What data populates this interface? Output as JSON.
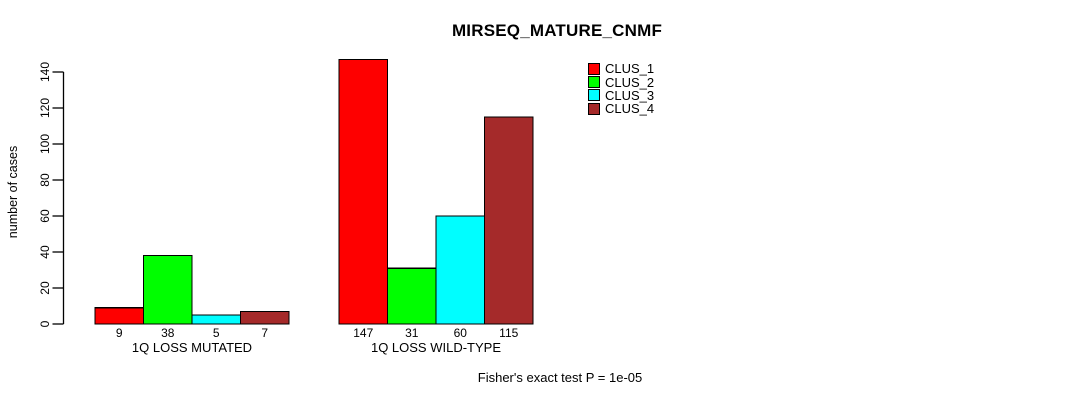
{
  "chart_data": {
    "type": "bar",
    "title": "MIRSEQ_MATURE_CNMF",
    "ylabel": "number of cases",
    "xlabel": "",
    "ylim": [
      0,
      140
    ],
    "yticks": [
      0,
      20,
      40,
      60,
      80,
      100,
      120,
      140
    ],
    "grid": false,
    "legend_position": "top-right",
    "categories": [
      "1Q LOSS MUTATED",
      "1Q LOSS WILD-TYPE"
    ],
    "series": [
      {
        "name": "CLUS_1",
        "color": "#fe0000",
        "values": [
          9,
          147
        ]
      },
      {
        "name": "CLUS_2",
        "color": "#00fe00",
        "values": [
          38,
          31
        ]
      },
      {
        "name": "CLUS_3",
        "color": "#00feff",
        "values": [
          5,
          60
        ]
      },
      {
        "name": "CLUS_4",
        "color": "#a52a2a",
        "values": [
          7,
          115
        ]
      }
    ],
    "value_labels_shown": true,
    "annotation": "Fisher's exact test P = 1e-05"
  }
}
